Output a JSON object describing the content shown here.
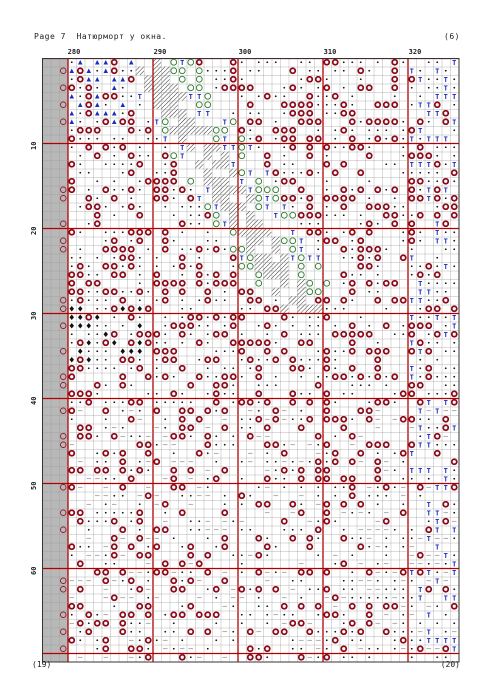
{
  "header": {
    "left": "Page 7  Натюрморт у окна.",
    "right": "(6)"
  },
  "footer": {
    "left": "(19)",
    "right": "(20)"
  },
  "grid": {
    "column_labels": [
      "280",
      "290",
      "300",
      "310",
      "320"
    ],
    "row_labels": [
      "10",
      "20",
      "30",
      "40",
      "50",
      "60"
    ],
    "symbols": [
      "white-cell",
      "dot",
      "T",
      "circled-S",
      "circle-outline",
      "hatched",
      "solid-diamond",
      "heart",
      "triangle",
      "dash",
      "star",
      "club"
    ],
    "colors": {
      "grid_line": "#999999",
      "major_line": "#b00000",
      "gray_cell": "#b8b8b8",
      "dark_red": "#8b0a1a",
      "blue": "#1a2bbf",
      "green": "#2a7a2a",
      "black": "#111111"
    }
  }
}
